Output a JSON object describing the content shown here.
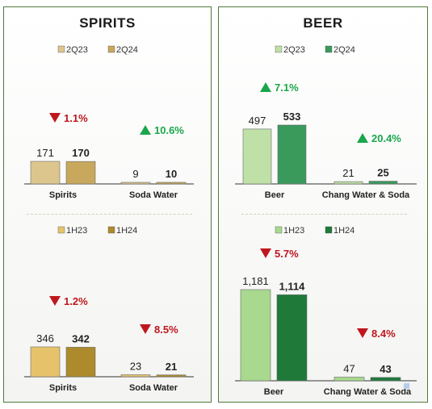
{
  "chart_data": [
    {
      "type": "bar",
      "panel": "SPIRITS",
      "title": "SPIRITS",
      "legend": [
        "2Q23",
        "2Q24"
      ],
      "legend_colors": [
        "#ddc68e",
        "#c8a85c"
      ],
      "categories": [
        "Spirits",
        "Soda Water"
      ],
      "series": [
        {
          "name": "2Q23",
          "values": [
            171,
            9
          ],
          "labels": [
            "171",
            "9"
          ]
        },
        {
          "name": "2Q24",
          "values": [
            170,
            10
          ],
          "labels": [
            "170",
            "10"
          ]
        }
      ],
      "changes": [
        {
          "direction": "down",
          "text": "1.1%"
        },
        {
          "direction": "up",
          "text": "10.6%"
        }
      ]
    },
    {
      "type": "bar",
      "panel": "SPIRITS",
      "legend": [
        "1H23",
        "1H24"
      ],
      "legend_colors": [
        "#e6c36a",
        "#ad8a2c"
      ],
      "categories": [
        "Spirits",
        "Soda Water"
      ],
      "series": [
        {
          "name": "1H23",
          "values": [
            346,
            23
          ],
          "labels": [
            "346",
            "23"
          ]
        },
        {
          "name": "1H24",
          "values": [
            342,
            21
          ],
          "labels": [
            "342",
            "21"
          ]
        }
      ],
      "changes": [
        {
          "direction": "down",
          "text": "1.2%"
        },
        {
          "direction": "down",
          "text": "8.5%"
        }
      ]
    },
    {
      "type": "bar",
      "panel": "BEER",
      "title": "BEER",
      "legend": [
        "2Q23",
        "2Q24"
      ],
      "legend_colors": [
        "#bfe0a6",
        "#3a9a5c"
      ],
      "categories": [
        "Beer",
        "Chang Water & Soda"
      ],
      "series": [
        {
          "name": "2Q23",
          "values": [
            497,
            21
          ],
          "labels": [
            "497",
            "21"
          ]
        },
        {
          "name": "2Q24",
          "values": [
            533,
            25
          ],
          "labels": [
            "533",
            "25"
          ]
        }
      ],
      "changes": [
        {
          "direction": "up",
          "text": "7.1%"
        },
        {
          "direction": "up",
          "text": "20.4%"
        }
      ]
    },
    {
      "type": "bar",
      "panel": "BEER",
      "legend": [
        "1H23",
        "1H24"
      ],
      "legend_colors": [
        "#a8d98e",
        "#1f7a3a"
      ],
      "categories": [
        "Beer",
        "Chang Water & Soda"
      ],
      "series": [
        {
          "name": "1H23",
          "values": [
            1181,
            47
          ],
          "labels": [
            "1,181",
            "47"
          ]
        },
        {
          "name": "1H24",
          "values": [
            1114,
            43
          ],
          "labels": [
            "1,114",
            "43"
          ]
        }
      ],
      "changes": [
        {
          "direction": "down",
          "text": "5.7%"
        },
        {
          "direction": "down",
          "text": "8.4%"
        }
      ]
    }
  ],
  "colors": {
    "up": "#1aa64a",
    "down": "#c0161d",
    "panel_border": "#4f7a3a"
  }
}
